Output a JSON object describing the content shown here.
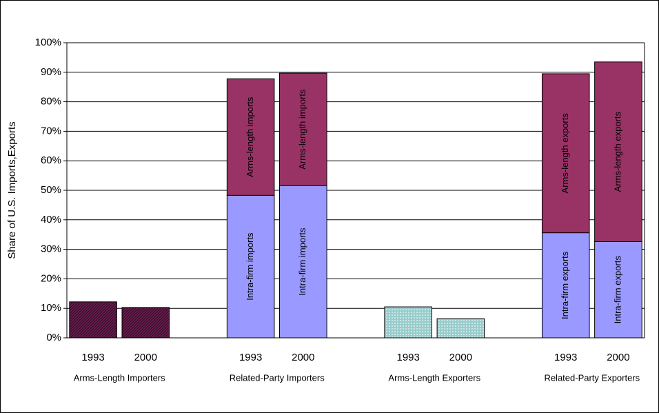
{
  "chart_data": {
    "type": "stacked_bar",
    "y_label": "Share of U.S. Imports,Exports",
    "categories": [
      "1993",
      "2000",
      "1993",
      "2000",
      "1993",
      "2000",
      "1993",
      "2000"
    ],
    "groups": [
      "Arms-Length Importers",
      "Related-Party Importers",
      "Arms-Length Exporters",
      "Related-Party Exporters"
    ],
    "series": [
      {
        "color": "#6b1d4f",
        "pattern": "hatch",
        "values": [
          12.2,
          10.3,
          null,
          null,
          null,
          null,
          null,
          null
        ]
      },
      {
        "name": "Intra-firm imports",
        "color": "#9999ff",
        "values": [
          null,
          null,
          48.3,
          51.6,
          null,
          null,
          null,
          null
        ]
      },
      {
        "name": "Arms-length imports",
        "color": "#993366",
        "values": [
          null,
          null,
          39.5,
          38.1,
          null,
          null,
          null,
          null
        ]
      },
      {
        "color": "#99cccc",
        "pattern": "dots",
        "values": [
          null,
          null,
          null,
          null,
          10.5,
          6.5,
          null,
          null
        ]
      },
      {
        "name": "Intra-firm exports",
        "color": "#9999ff",
        "values": [
          null,
          null,
          null,
          null,
          null,
          null,
          35.6,
          32.6
        ]
      },
      {
        "name": "Arms-length exports",
        "color": "#993366",
        "values": [
          null,
          null,
          null,
          null,
          null,
          null,
          53.9,
          60.9
        ]
      }
    ],
    "ylim": [
      0,
      100
    ],
    "yticks": [
      {
        "value": 0,
        "label": "0%"
      },
      {
        "value": 10,
        "label": "10%"
      },
      {
        "value": 20,
        "label": "20%"
      },
      {
        "value": 30,
        "label": "30%"
      },
      {
        "value": 40,
        "label": "40%"
      },
      {
        "value": 50,
        "label": "50%"
      },
      {
        "value": 60,
        "label": "60%"
      },
      {
        "value": 70,
        "label": "70%"
      },
      {
        "value": 80,
        "label": "80%"
      },
      {
        "value": 90,
        "label": "90%"
      },
      {
        "value": 100,
        "label": "100%"
      }
    ],
    "grid": true
  }
}
